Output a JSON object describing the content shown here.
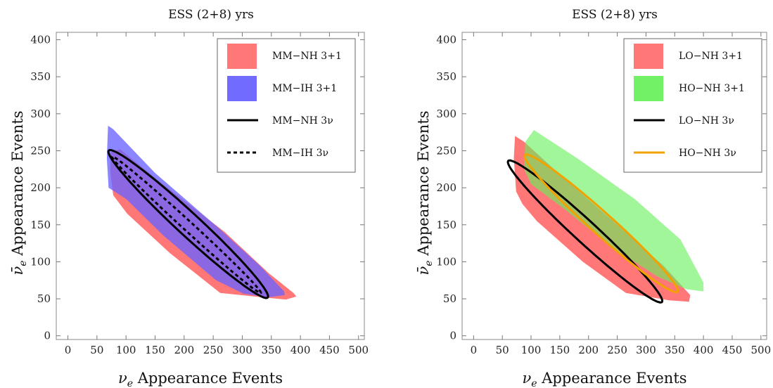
{
  "chart_data": [
    {
      "type": "region",
      "title": "ESS (2+8) yrs",
      "xlabel": "ν",
      "xlabel_sub": "e",
      "xlabel_rest": " Appearance Events",
      "ylabel": "ν̄",
      "ylabel_sub": "e",
      "ylabel_rest": " Appearance Events",
      "xlim": [
        -20,
        510
      ],
      "ylim": [
        -5,
        410
      ],
      "xticks": [
        "0",
        "50",
        "100",
        "150",
        "200",
        "250",
        "300",
        "350",
        "400",
        "450",
        "500"
      ],
      "yticks": [
        "0",
        "50",
        "100",
        "150",
        "200",
        "250",
        "300",
        "350",
        "400"
      ],
      "xtick_values": [
        0,
        50,
        100,
        150,
        200,
        250,
        300,
        350,
        400,
        450,
        500
      ],
      "ytick_values": [
        0,
        50,
        100,
        150,
        200,
        250,
        300,
        350,
        400
      ],
      "legend_position": "top-right",
      "series": [
        {
          "name": "MM−NH 3+1",
          "kind": "region",
          "color": "#ff6b6b",
          "points": [
            [
              73,
              248
            ],
            [
              90,
              252
            ],
            [
              160,
              207
            ],
            [
              270,
              140
            ],
            [
              345,
              85
            ],
            [
              388,
              58
            ],
            [
              393,
              53
            ],
            [
              375,
              49
            ],
            [
              335,
              52
            ],
            [
              262,
              58
            ],
            [
              175,
              112
            ],
            [
              102,
              165
            ],
            [
              78,
              190
            ],
            [
              73,
              220
            ]
          ]
        },
        {
          "name": "MM−IH 3+1",
          "kind": "region",
          "color": "#6a63ff",
          "points": [
            [
              69,
              284
            ],
            [
              78,
              279
            ],
            [
              150,
              220
            ],
            [
              260,
              145
            ],
            [
              330,
              95
            ],
            [
              372,
              60
            ],
            [
              373,
              55
            ],
            [
              345,
              52
            ],
            [
              302,
              57
            ],
            [
              255,
              75
            ],
            [
              165,
              135
            ],
            [
              100,
              185
            ],
            [
              70,
              200
            ],
            [
              67,
              240
            ]
          ]
        },
        {
          "name": "MM−NH 3ν",
          "kind": "ellipse",
          "color": "#000000",
          "dash": "none",
          "cx": 207,
          "cy": 151,
          "hx": 137,
          "hy": -99,
          "w": 0.1
        },
        {
          "name": "MM−IH 3ν",
          "kind": "ellipse",
          "color": "#000000",
          "dash": "5,4",
          "cx": 204,
          "cy": 150,
          "hx": 128,
          "hy": -92,
          "w": 0.045
        }
      ]
    },
    {
      "type": "region",
      "title": "ESS (2+8) yrs",
      "xlabel": "ν",
      "xlabel_sub": "e",
      "xlabel_rest": " Appearance Events",
      "ylabel": "ν̄",
      "ylabel_sub": "e",
      "ylabel_rest": " Appearance Events",
      "xlim": [
        -20,
        510
      ],
      "ylim": [
        -5,
        410
      ],
      "xticks": [
        "0",
        "50",
        "100",
        "150",
        "200",
        "250",
        "300",
        "350",
        "400",
        "450",
        "500"
      ],
      "yticks": [
        "0",
        "50",
        "100",
        "150",
        "200",
        "250",
        "300",
        "350",
        "400"
      ],
      "xtick_values": [
        0,
        50,
        100,
        150,
        200,
        250,
        300,
        350,
        400,
        450,
        500
      ],
      "ytick_values": [
        0,
        50,
        100,
        150,
        200,
        250,
        300,
        350,
        400
      ],
      "legend_position": "top-right",
      "series": [
        {
          "name": "LO−NH 3+1",
          "kind": "region",
          "color": "#ff6b6b",
          "points": [
            [
              72,
              270
            ],
            [
              88,
              262
            ],
            [
              150,
              218
            ],
            [
              250,
              150
            ],
            [
              330,
              95
            ],
            [
              377,
              55
            ],
            [
              375,
              46
            ],
            [
              340,
              48
            ],
            [
              265,
              58
            ],
            [
              190,
              100
            ],
            [
              110,
              155
            ],
            [
              85,
              178
            ],
            [
              74,
              195
            ],
            [
              70,
              240
            ]
          ]
        },
        {
          "name": "HO−NH 3+1",
          "kind": "region",
          "color": "#66f05a",
          "points": [
            [
              90,
              262
            ],
            [
              105,
              278
            ],
            [
              180,
              240
            ],
            [
              280,
              185
            ],
            [
              360,
              130
            ],
            [
              400,
              72
            ],
            [
              400,
              60
            ],
            [
              370,
              63
            ],
            [
              320,
              80
            ],
            [
              240,
              120
            ],
            [
              160,
              170
            ],
            [
              100,
              205
            ],
            [
              88,
              225
            ]
          ]
        },
        {
          "name": "LO−NH 3ν",
          "kind": "ellipse",
          "color": "#000000",
          "dash": "none",
          "cx": 194,
          "cy": 141,
          "hx": 134,
          "hy": -95,
          "w": 0.1
        },
        {
          "name": "HO−NH 3ν",
          "kind": "ellipse",
          "color": "#f2a200",
          "dash": "none",
          "cx": 222,
          "cy": 152,
          "hx": 133,
          "hy": -92,
          "w": 0.1
        }
      ]
    }
  ]
}
